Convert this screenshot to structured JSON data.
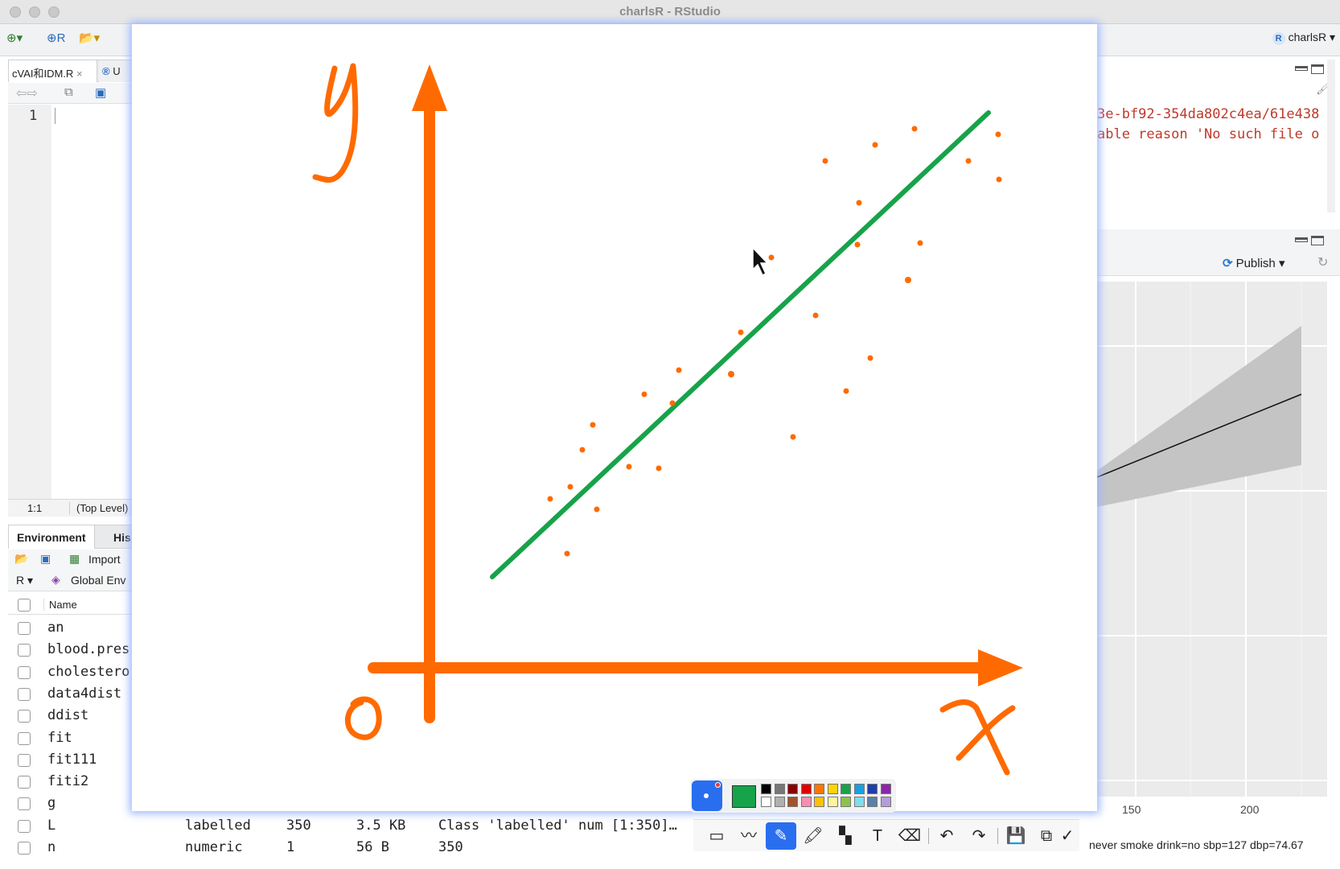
{
  "window": {
    "title": "charlsR - RStudio"
  },
  "project": {
    "label": "charlsR"
  },
  "source": {
    "tabs": [
      "cVAI和IDM.R",
      "U"
    ],
    "line_number": "1",
    "cursor_pos": "1:1",
    "scope": "(Top Level)"
  },
  "environment": {
    "tabs": [
      "Environment",
      "His"
    ],
    "import_label": "Import",
    "lang_label": "R",
    "scope_label": "Global Env",
    "name_header": "Name",
    "rows": [
      {
        "name": "an",
        "class": "",
        "length": "",
        "size": "",
        "value": ""
      },
      {
        "name": "blood.pres",
        "class": "",
        "length": "",
        "size": "",
        "value": ""
      },
      {
        "name": "cholestero",
        "class": "",
        "length": "",
        "size": "",
        "value": ""
      },
      {
        "name": "data4dist",
        "class": "",
        "length": "",
        "size": "",
        "value": ""
      },
      {
        "name": "ddist",
        "class": "",
        "length": "",
        "size": "",
        "value": ""
      },
      {
        "name": "fit",
        "class": "",
        "length": "",
        "size": "",
        "value": ""
      },
      {
        "name": "fit111",
        "class": "",
        "length": "",
        "size": "",
        "value": ""
      },
      {
        "name": "fiti2",
        "class": "",
        "length": "",
        "size": "",
        "value": ""
      },
      {
        "name": "g",
        "class": "",
        "length": "",
        "size": "",
        "value": ""
      },
      {
        "name": "L",
        "class": "labelled",
        "length": "350",
        "size": "3.5 KB",
        "value": "Class 'labelled' num [1:350]…"
      },
      {
        "name": "n",
        "class": "numeric",
        "length": "1",
        "size": "56 B",
        "value": "350"
      }
    ]
  },
  "console": {
    "lines": [
      "3e-bf92-354da802c4ea/61e438",
      "able reason 'No such file o"
    ]
  },
  "viewer": {
    "publish_label": "Publish",
    "x_ticks": [
      "150",
      "200"
    ],
    "status_text": "never smoke drink=no sbp=127 dbp=74.67"
  },
  "annotation": {
    "axis_color": "#ff6a00",
    "line_color": "#17a34a",
    "labels": {
      "y": "y",
      "x": "x",
      "origin": "0"
    }
  },
  "palette": {
    "current_color": "#17a34a",
    "colors": [
      "#000000",
      "#777777",
      "#8b0000",
      "#e00000",
      "#ff7700",
      "#ffd600",
      "#17a34a",
      "#1aa0e0",
      "#1e3fa8",
      "#8e24aa",
      "#ffffff",
      "#b0b0b0",
      "#a0522d",
      "#f48fb1",
      "#ffc107",
      "#fff59d",
      "#8bc34a",
      "#80deea",
      "#5c7fa8",
      "#b39ddb"
    ],
    "tools": [
      "shape-tool",
      "line-tool",
      "pen-tool",
      "highlighter-tool",
      "mosaic-tool",
      "text-tool",
      "eraser-tool",
      "undo",
      "redo",
      "save",
      "copy",
      "done"
    ]
  }
}
